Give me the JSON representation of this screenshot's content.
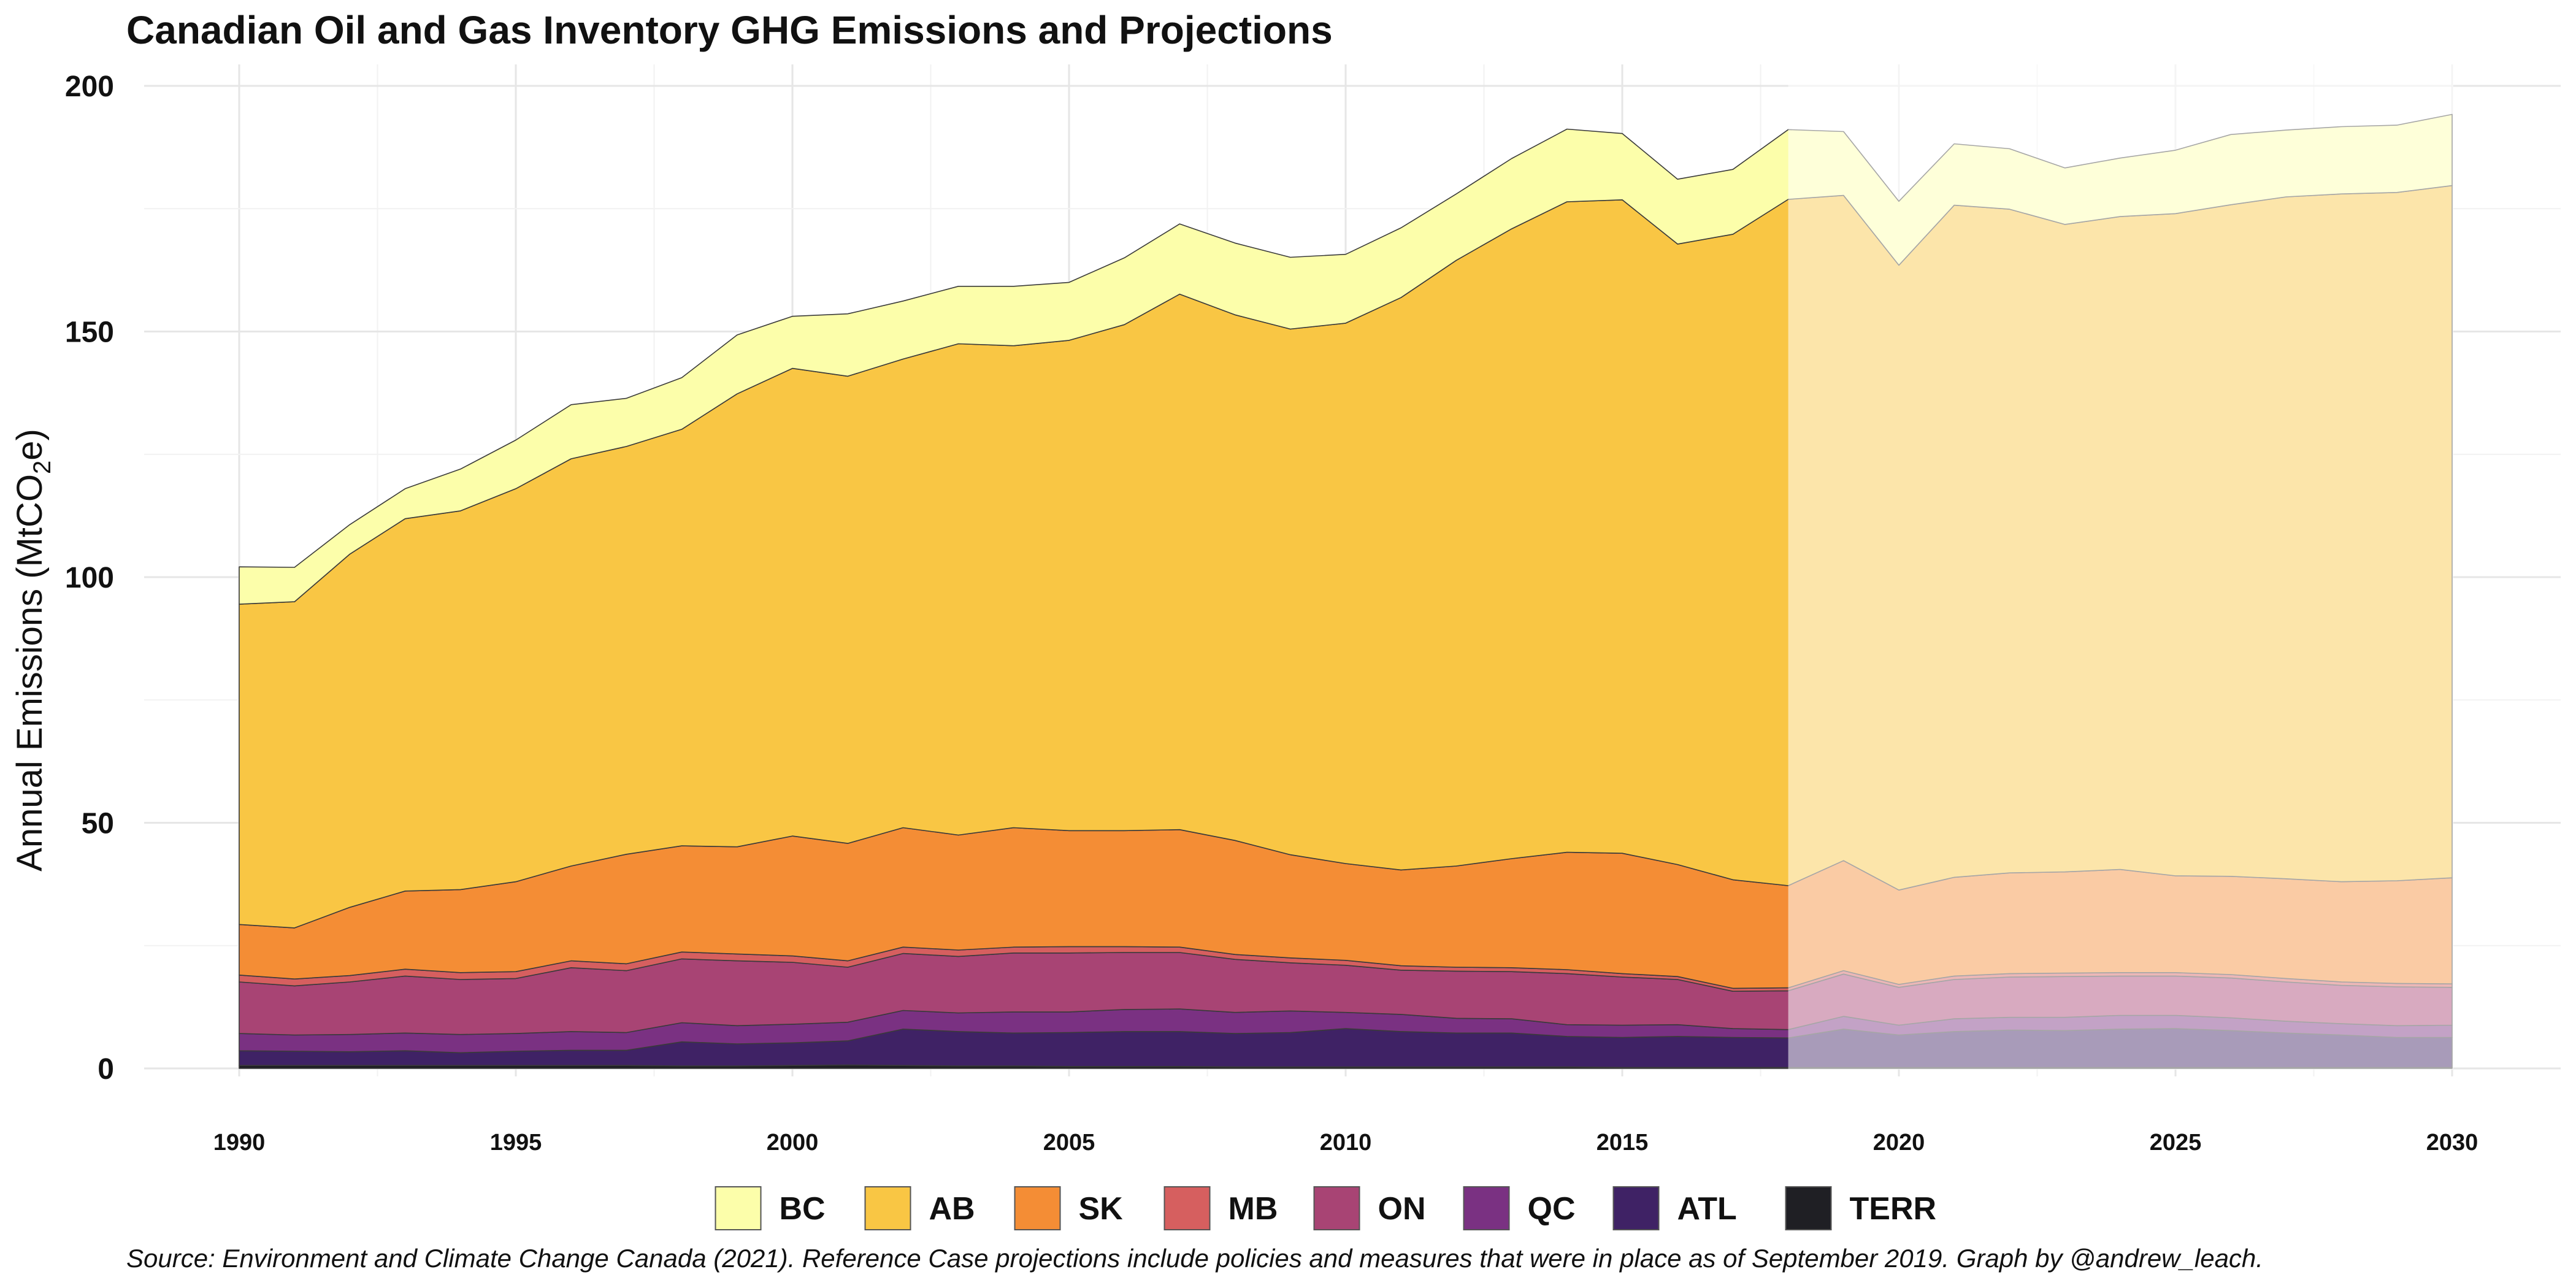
{
  "chart_data": {
    "type": "area",
    "title": "Canadian Oil and Gas Inventory GHG Emissions and Projections",
    "ylabel": "Annual Emissions  (MtCO",
    "ylabel_sub": "2",
    "ylabel_end": "e)",
    "xlabel": "",
    "caption": "Source: Environment and Climate Change Canada (2021). Reference Case projections include policies and measures that were in place as of September 2019. Graph by @andrew_leach.",
    "stacked": true,
    "xlim": [
      1990,
      2030
    ],
    "ylim": [
      0,
      200
    ],
    "x_ticks": [
      1990,
      1995,
      2000,
      2005,
      2010,
      2015,
      2020,
      2025,
      2030
    ],
    "y_ticks": [
      0,
      50,
      100,
      150,
      200
    ],
    "grid": true,
    "legend_position": "bottom",
    "projection_start": 2018,
    "x": [
      1990,
      1991,
      1992,
      1993,
      1994,
      1995,
      1996,
      1997,
      1998,
      1999,
      2000,
      2001,
      2002,
      2003,
      2004,
      2005,
      2006,
      2007,
      2008,
      2009,
      2010,
      2011,
      2012,
      2013,
      2014,
      2015,
      2016,
      2017,
      2018,
      2019,
      2020,
      2021,
      2022,
      2023,
      2024,
      2025,
      2026,
      2027,
      2028,
      2029,
      2030
    ],
    "series": [
      {
        "name": "TERR",
        "color": "#1f1f24",
        "values": [
          0.6,
          0.6,
          0.6,
          0.6,
          0.6,
          0.6,
          0.6,
          0.6,
          0.5,
          0.5,
          0.6,
          0.7,
          0.6,
          0.5,
          0.5,
          0.4,
          0.4,
          0.4,
          0.3,
          0.3,
          0.3,
          0.3,
          0.3,
          0.3,
          0.3,
          0.2,
          0.2,
          0.2,
          0.2,
          0.2,
          0.2,
          0.2,
          0.2,
          0.2,
          0.2,
          0.2,
          0.2,
          0.2,
          0.2,
          0.2,
          0.2
        ]
      },
      {
        "name": "ATL",
        "color": "#3f2265",
        "values": [
          3.0,
          2.9,
          2.8,
          3.0,
          2.6,
          2.9,
          3.1,
          3.1,
          4.9,
          4.5,
          4.6,
          4.9,
          7.4,
          7.0,
          6.7,
          6.9,
          7.1,
          7.1,
          6.8,
          7.0,
          7.8,
          7.2,
          6.9,
          6.9,
          6.2,
          6.1,
          6.3,
          6.1,
          6.0,
          7.8,
          6.6,
          7.3,
          7.6,
          7.5,
          7.8,
          7.9,
          7.5,
          7.0,
          6.6,
          6.1,
          6.1
        ]
      },
      {
        "name": "QC",
        "color": "#7a3182",
        "values": [
          3.5,
          3.3,
          3.5,
          3.6,
          3.7,
          3.6,
          3.8,
          3.6,
          3.9,
          3.7,
          3.8,
          3.8,
          3.8,
          3.8,
          4.3,
          4.2,
          4.5,
          4.6,
          4.3,
          4.4,
          3.3,
          3.5,
          3.0,
          2.9,
          2.4,
          2.5,
          2.4,
          1.8,
          1.7,
          2.6,
          2.0,
          2.6,
          2.6,
          2.7,
          2.8,
          2.7,
          2.6,
          2.4,
          2.3,
          2.4,
          2.5
        ]
      },
      {
        "name": "ON",
        "color": "#a84474",
        "values": [
          10.5,
          10.0,
          10.7,
          11.6,
          11.2,
          11.2,
          13.0,
          12.6,
          13.0,
          13.2,
          12.6,
          11.2,
          11.6,
          11.5,
          12.0,
          12.0,
          11.6,
          11.5,
          10.8,
          9.8,
          9.6,
          9.0,
          9.6,
          9.6,
          10.4,
          9.8,
          9.2,
          7.6,
          7.9,
          8.6,
          7.7,
          8.0,
          8.2,
          8.3,
          8.0,
          8.0,
          8.1,
          8.0,
          7.8,
          7.9,
          7.7
        ]
      },
      {
        "name": "MB",
        "color": "#d65f5f",
        "values": [
          1.4,
          1.4,
          1.3,
          1.4,
          1.4,
          1.4,
          1.4,
          1.4,
          1.4,
          1.4,
          1.3,
          1.3,
          1.3,
          1.3,
          1.2,
          1.3,
          1.2,
          1.1,
          1.0,
          1.0,
          1.0,
          0.9,
          0.8,
          0.8,
          0.8,
          0.7,
          0.6,
          0.6,
          0.6,
          0.7,
          0.6,
          0.7,
          0.7,
          0.7,
          0.7,
          0.7,
          0.7,
          0.7,
          0.7,
          0.7,
          0.7
        ]
      },
      {
        "name": "SK",
        "color": "#f48d35",
        "values": [
          10.3,
          10.4,
          13.9,
          15.9,
          16.9,
          18.3,
          19.3,
          22.3,
          21.6,
          21.8,
          24.4,
          23.9,
          24.3,
          23.4,
          24.3,
          23.6,
          23.6,
          23.9,
          23.2,
          21.0,
          19.7,
          19.5,
          20.6,
          22.2,
          23.9,
          24.5,
          22.8,
          22.1,
          20.8,
          22.4,
          19.2,
          20.1,
          20.5,
          20.6,
          21.0,
          19.7,
          20.0,
          20.3,
          20.4,
          20.9,
          21.6
        ]
      },
      {
        "name": "AB",
        "color": "#f9c644",
        "values": [
          65.2,
          66.4,
          71.9,
          75.8,
          77.1,
          80.0,
          82.9,
          83.0,
          84.8,
          92.2,
          95.2,
          95.1,
          95.4,
          100.0,
          98.1,
          99.8,
          103.0,
          109.0,
          107.0,
          107.0,
          110.0,
          116.5,
          123.3,
          128.2,
          132.4,
          133.0,
          126.3,
          131.4,
          139.7,
          135.4,
          127.2,
          136.8,
          135.1,
          131.8,
          132.9,
          134.8,
          136.7,
          138.8,
          140.0,
          140.1,
          140.9
        ]
      },
      {
        "name": "BC",
        "color": "#fcfeaa",
        "values": [
          7.6,
          7.0,
          6.0,
          6.1,
          8.5,
          9.9,
          11.0,
          9.8,
          10.5,
          12.0,
          10.6,
          12.7,
          11.8,
          11.7,
          12.1,
          11.8,
          13.6,
          14.3,
          14.6,
          14.6,
          14.0,
          14.2,
          13.5,
          14.3,
          14.8,
          13.5,
          13.2,
          13.2,
          14.2,
          13.0,
          13.0,
          12.5,
          12.3,
          11.5,
          11.9,
          12.9,
          14.3,
          13.6,
          13.7,
          13.7,
          14.5
        ]
      }
    ]
  }
}
